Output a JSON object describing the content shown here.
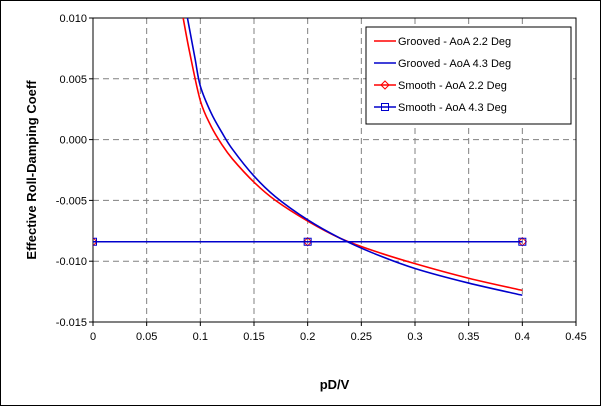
{
  "chart_data": {
    "type": "line",
    "title": "",
    "xlabel": "pD/V",
    "ylabel": "Effective Roll-Damping  Coeff",
    "xlim": [
      0,
      0.45
    ],
    "ylim": [
      -0.015,
      0.01
    ],
    "xticks": [
      0,
      0.05,
      0.1,
      0.15,
      0.2,
      0.25,
      0.3,
      0.35,
      0.4,
      0.45
    ],
    "xtick_labels": [
      "0",
      "0.05",
      "0.1",
      "0.15",
      "0.2",
      "0.25",
      "0.3",
      "0.35",
      "0.4",
      "0.45"
    ],
    "yticks": [
      0.01,
      0.005,
      0,
      -0.005,
      -0.01,
      -0.015
    ],
    "ytick_labels": [
      "0.010",
      "0.005",
      "0.000",
      "-0.005",
      "-0.010",
      "-0.015"
    ],
    "grid": true,
    "legend_position": "top-right",
    "series": [
      {
        "name": "Grooved - AoA 2.2 Deg",
        "color": "#ff0000",
        "marker": "none",
        "x": [
          0.084,
          0.09,
          0.1,
          0.11,
          0.12,
          0.13,
          0.15,
          0.17,
          0.2,
          0.23,
          0.26,
          0.3,
          0.35,
          0.4
        ],
        "y": [
          0.01,
          0.0072,
          0.0032,
          0.0011,
          -0.0004,
          -0.0016,
          -0.0035,
          -0.005,
          -0.0067,
          -0.0081,
          -0.0091,
          -0.0102,
          -0.0114,
          -0.0124
        ]
      },
      {
        "name": "Grooved - AoA 4.3 Deg",
        "color": "#0000cc",
        "marker": "none",
        "x": [
          0.088,
          0.095,
          0.1,
          0.11,
          0.12,
          0.13,
          0.15,
          0.17,
          0.2,
          0.23,
          0.26,
          0.3,
          0.35,
          0.4
        ],
        "y": [
          0.01,
          0.0067,
          0.0044,
          0.0022,
          0.0006,
          -0.0008,
          -0.003,
          -0.0047,
          -0.0066,
          -0.0081,
          -0.0093,
          -0.0106,
          -0.0118,
          -0.0128
        ]
      },
      {
        "name": "Smooth - AoA 2.2 Deg",
        "color": "#ff0000",
        "marker": "diamond",
        "x": [
          0,
          0.2,
          0.4
        ],
        "y": [
          -0.0084,
          -0.0084,
          -0.0084
        ]
      },
      {
        "name": "Smooth - AoA 4.3 Deg",
        "color": "#0000cc",
        "marker": "square",
        "x": [
          0,
          0.2,
          0.4
        ],
        "y": [
          -0.0084,
          -0.0084,
          -0.0084
        ]
      }
    ]
  }
}
